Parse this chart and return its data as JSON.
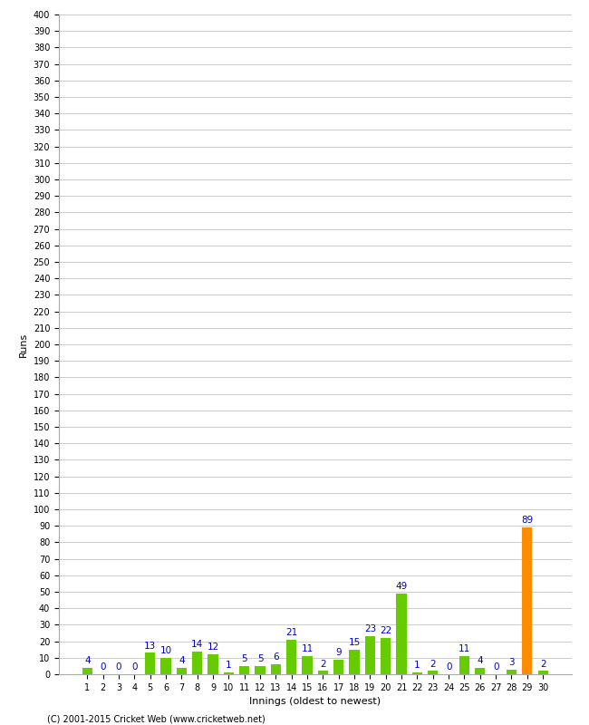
{
  "title": "",
  "xlabel": "Innings (oldest to newest)",
  "ylabel": "Runs",
  "values": [
    4,
    0,
    0,
    0,
    13,
    10,
    4,
    14,
    12,
    1,
    5,
    5,
    6,
    21,
    11,
    2,
    9,
    15,
    23,
    22,
    49,
    1,
    2,
    0,
    11,
    4,
    0,
    3,
    89,
    2
  ],
  "innings": [
    1,
    2,
    3,
    4,
    5,
    6,
    7,
    8,
    9,
    10,
    11,
    12,
    13,
    14,
    15,
    16,
    17,
    18,
    19,
    20,
    21,
    22,
    23,
    24,
    25,
    26,
    27,
    28,
    29,
    30
  ],
  "highlight_index": 28,
  "bar_color_normal": "#66cc00",
  "bar_color_highlight": "#ff8c00",
  "label_color": "#0000cc",
  "background_color": "#ffffff",
  "grid_color": "#cccccc",
  "ylim": [
    0,
    400
  ],
  "yticks": [
    0,
    10,
    20,
    30,
    40,
    50,
    60,
    70,
    80,
    90,
    100,
    110,
    120,
    130,
    140,
    150,
    160,
    170,
    180,
    190,
    200,
    210,
    220,
    230,
    240,
    250,
    260,
    270,
    280,
    290,
    300,
    310,
    320,
    330,
    340,
    350,
    360,
    370,
    380,
    390,
    400
  ],
  "footer": "(C) 2001-2015 Cricket Web (www.cricketweb.net)",
  "label_fontsize": 7.5,
  "axis_tick_fontsize": 7,
  "axis_label_fontsize": 8,
  "bar_width": 0.65
}
